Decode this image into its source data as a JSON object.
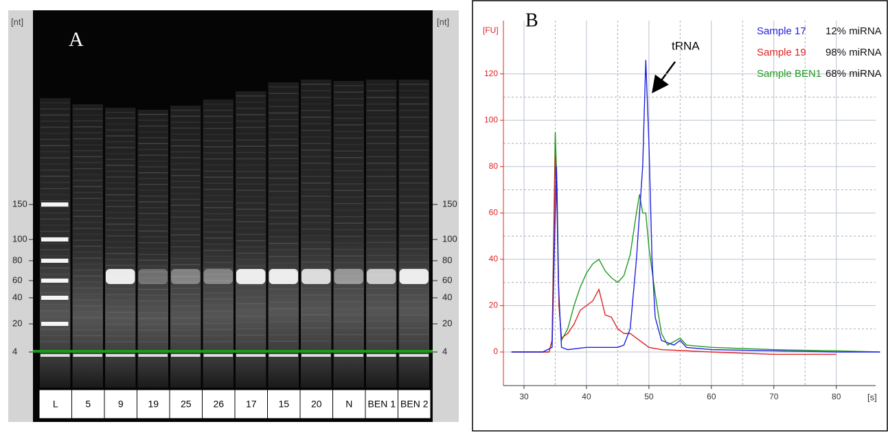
{
  "gel": {
    "panel_label": "A",
    "unit": "[nt]",
    "ticks": [
      150,
      100,
      80,
      60,
      40,
      20,
      4
    ],
    "lanes": [
      "L",
      "5",
      "9",
      "19",
      "25",
      "26",
      "17",
      "15",
      "20",
      "N",
      "BEN 1",
      "BEN 2"
    ]
  },
  "chart_data": {
    "type": "line",
    "panel_label": "B",
    "y_unit": "[FU]",
    "x_unit": "[s]",
    "annotation": "tRNA",
    "legend": "upper right",
    "grid": true,
    "xlim": [
      26.7,
      86.3
    ],
    "xticks": [
      30,
      40,
      50,
      60,
      70,
      80
    ],
    "ylim": [
      -14.5,
      143
    ],
    "yticks": [
      0,
      20,
      40,
      60,
      80,
      100,
      120
    ],
    "series": [
      {
        "name": "Sample 17",
        "note": "12% miRNA",
        "color": "#1f1fe0",
        "x": [
          28,
          33,
          34.5,
          35,
          35.2,
          35.5,
          36,
          37,
          40,
          45,
          46,
          47,
          48,
          48.5,
          49,
          49.5,
          50,
          50.5,
          51,
          52,
          54,
          55,
          56,
          60,
          70,
          80,
          87
        ],
        "values": [
          0,
          0,
          2,
          60,
          80,
          30,
          2,
          1,
          2,
          2,
          3,
          10,
          40,
          60,
          80,
          126,
          90,
          40,
          15,
          5,
          3,
          5,
          2,
          1,
          0.5,
          0,
          0
        ]
      },
      {
        "name": "Sample 19",
        "note": "98% miRNA",
        "color": "#e02020",
        "x": [
          28,
          34,
          34.5,
          35,
          35.3,
          35.6,
          36,
          37,
          38,
          39,
          40,
          41,
          42,
          43,
          44,
          45,
          46,
          47,
          48,
          49,
          50,
          52,
          60,
          70,
          80
        ],
        "values": [
          0,
          0,
          5,
          85,
          60,
          20,
          6,
          8,
          12,
          18,
          20,
          22,
          27,
          16,
          15,
          10,
          8,
          8,
          6,
          4,
          2,
          1,
          0,
          -1,
          -1
        ]
      },
      {
        "name": "Sample BEN1",
        "note": "68% miRNA",
        "color": "#1f9a1f",
        "x": [
          28,
          34,
          34.5,
          35,
          35.3,
          35.6,
          36,
          37,
          38,
          39,
          40,
          41,
          42,
          43,
          44,
          45,
          46,
          47,
          48,
          48.5,
          49,
          49.5,
          50,
          51,
          52,
          53,
          55,
          56,
          60,
          70,
          80,
          87
        ],
        "values": [
          0,
          0,
          5,
          95,
          70,
          20,
          5,
          10,
          20,
          28,
          34,
          38,
          40,
          35,
          32,
          30,
          33,
          42,
          60,
          68,
          60,
          60,
          45,
          25,
          8,
          3,
          6,
          3,
          2,
          1,
          0.5,
          0
        ]
      }
    ]
  }
}
